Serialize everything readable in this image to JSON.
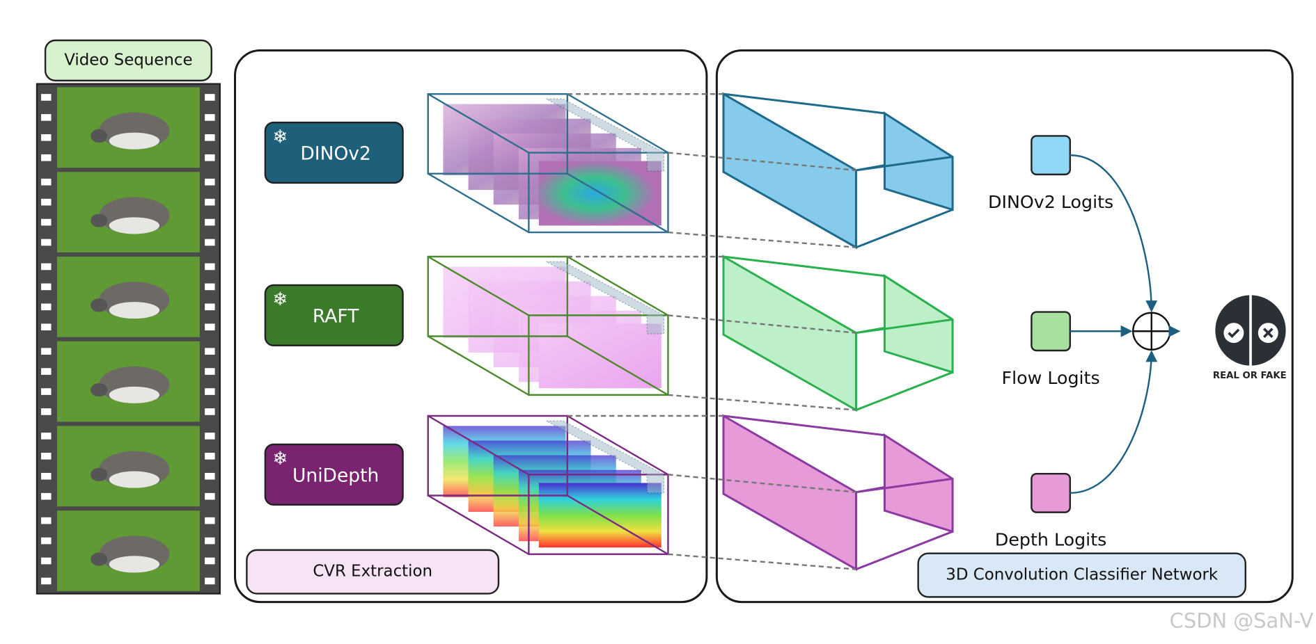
{
  "video": {
    "title": "Video Sequence"
  },
  "extractors": [
    {
      "label": "DINOv2"
    },
    {
      "label": "RAFT"
    },
    {
      "label": "UniDepth"
    }
  ],
  "panels": {
    "extraction": "CVR Extraction",
    "classifier": "3D Convolution Classifier Network"
  },
  "logits": [
    {
      "label": "DINOv2 Logits"
    },
    {
      "label": "Flow Logits"
    },
    {
      "label": "Depth Logits"
    }
  ],
  "output": {
    "label": "REAL OR FAKE"
  },
  "watermark": "CSDN @SaN-V"
}
